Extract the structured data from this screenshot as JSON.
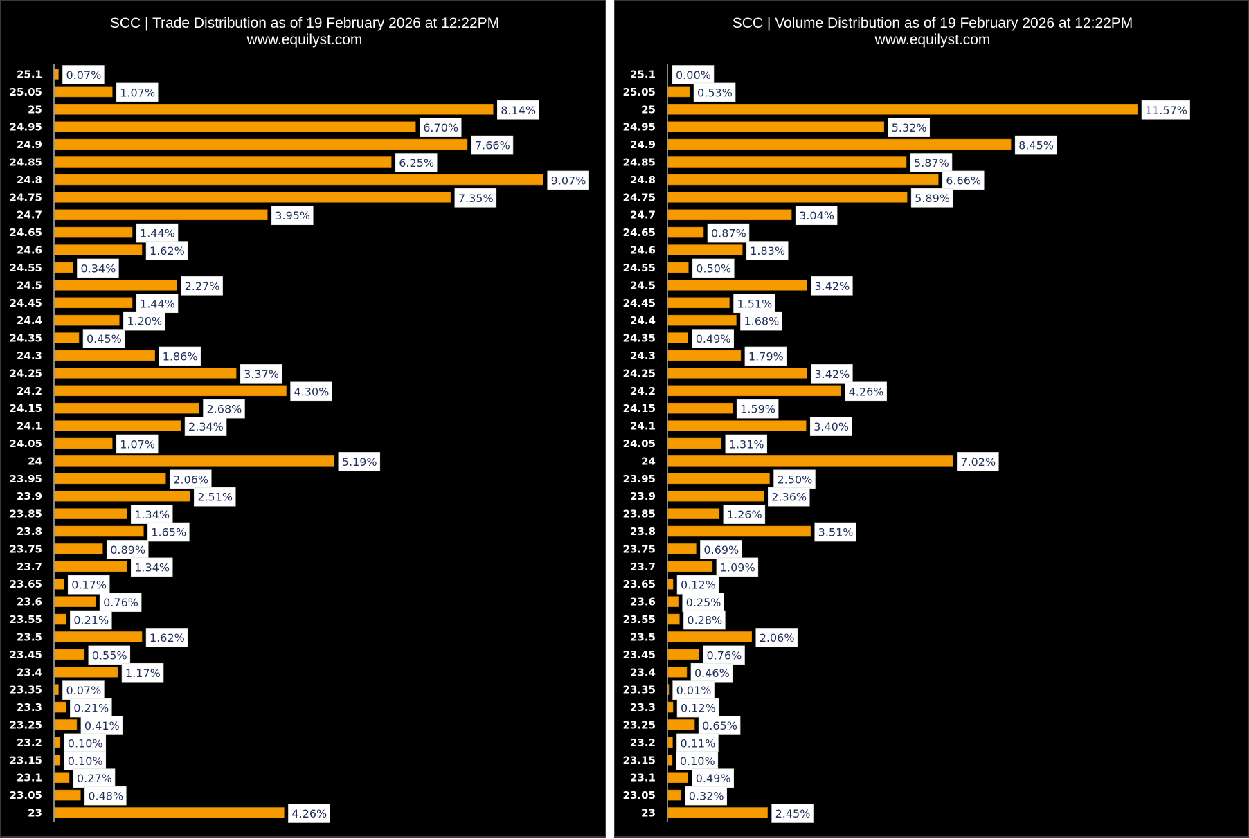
{
  "colors": {
    "background": "#000000",
    "bar": "#f59b00",
    "label_box": "#ffffff",
    "label_text": "#1f2f5c",
    "text": "#ffffff",
    "separator": "#ffffff"
  },
  "chart_data": [
    {
      "type": "bar",
      "orientation": "horizontal",
      "title": "SCC | Trade Distribution as of 19 February 2026 at 12:22PM",
      "subtitle": "www.equilyst.com",
      "xlabel": "",
      "ylabel": "",
      "grid": false,
      "legend": "none",
      "value_suffix": "%",
      "xlim": [
        0,
        10
      ],
      "categories": [
        "25.1",
        "25.05",
        "25",
        "24.95",
        "24.9",
        "24.85",
        "24.8",
        "24.75",
        "24.7",
        "24.65",
        "24.6",
        "24.55",
        "24.5",
        "24.45",
        "24.4",
        "24.35",
        "24.3",
        "24.25",
        "24.2",
        "24.15",
        "24.1",
        "24.05",
        "24",
        "23.95",
        "23.9",
        "23.85",
        "23.8",
        "23.75",
        "23.7",
        "23.65",
        "23.6",
        "23.55",
        "23.5",
        "23.45",
        "23.4",
        "23.35",
        "23.3",
        "23.25",
        "23.2",
        "23.15",
        "23.1",
        "23.05",
        "23"
      ],
      "values": [
        0.07,
        1.07,
        8.14,
        6.7,
        7.66,
        6.25,
        9.07,
        7.35,
        3.95,
        1.44,
        1.62,
        0.34,
        2.27,
        1.44,
        1.2,
        0.45,
        1.86,
        3.37,
        4.3,
        2.68,
        2.34,
        1.07,
        5.19,
        2.06,
        2.51,
        1.34,
        1.65,
        0.89,
        1.34,
        0.17,
        0.76,
        0.21,
        1.62,
        0.55,
        1.17,
        0.07,
        0.21,
        0.41,
        0.1,
        0.1,
        0.27,
        0.48,
        4.26
      ],
      "data_labels": [
        "0.07%",
        "1.07%",
        "8.14%",
        "6.70%",
        "7.66%",
        "6.25%",
        "9.07%",
        "7.35%",
        "3.95%",
        "1.44%",
        "1.62%",
        "0.34%",
        "2.27%",
        "1.44%",
        "1.20%",
        "0.45%",
        "1.86%",
        "3.37%",
        "4.30%",
        "2.68%",
        "2.34%",
        "1.07%",
        "5.19%",
        "2.06%",
        "2.51%",
        "1.34%",
        "1.65%",
        "0.89%",
        "1.34%",
        "0.17%",
        "0.76%",
        "0.21%",
        "1.62%",
        "0.55%",
        "1.17%",
        "0.07%",
        "0.21%",
        "0.41%",
        "0.10%",
        "0.10%",
        "0.27%",
        "0.48%",
        "4.26%"
      ]
    },
    {
      "type": "bar",
      "orientation": "horizontal",
      "title": "SCC | Volume Distribution as of 19 February 2026 at 12:22PM",
      "subtitle": "www.equilyst.com",
      "xlabel": "",
      "ylabel": "",
      "grid": false,
      "legend": "none",
      "value_suffix": "%",
      "xlim": [
        0,
        13
      ],
      "categories": [
        "25.1",
        "25.05",
        "25",
        "24.95",
        "24.9",
        "24.85",
        "24.8",
        "24.75",
        "24.7",
        "24.65",
        "24.6",
        "24.55",
        "24.5",
        "24.45",
        "24.4",
        "24.35",
        "24.3",
        "24.25",
        "24.2",
        "24.15",
        "24.1",
        "24.05",
        "24",
        "23.95",
        "23.9",
        "23.85",
        "23.8",
        "23.75",
        "23.7",
        "23.65",
        "23.6",
        "23.55",
        "23.5",
        "23.45",
        "23.4",
        "23.35",
        "23.3",
        "23.25",
        "23.2",
        "23.15",
        "23.1",
        "23.05",
        "23"
      ],
      "values": [
        0.0,
        0.53,
        11.57,
        5.32,
        8.45,
        5.87,
        6.66,
        5.89,
        3.04,
        0.87,
        1.83,
        0.5,
        3.42,
        1.51,
        1.68,
        0.49,
        1.79,
        3.42,
        4.26,
        1.59,
        3.4,
        1.31,
        7.02,
        2.5,
        2.36,
        1.26,
        3.51,
        0.69,
        1.09,
        0.12,
        0.25,
        0.28,
        2.06,
        0.76,
        0.46,
        0.01,
        0.12,
        0.65,
        0.11,
        0.1,
        0.49,
        0.32,
        2.45
      ],
      "data_labels": [
        "0.00%",
        "0.53%",
        "11.57%",
        "5.32%",
        "8.45%",
        "5.87%",
        "6.66%",
        "5.89%",
        "3.04%",
        "0.87%",
        "1.83%",
        "0.50%",
        "3.42%",
        "1.51%",
        "1.68%",
        "0.49%",
        "1.79%",
        "3.42%",
        "4.26%",
        "1.59%",
        "3.40%",
        "1.31%",
        "7.02%",
        "2.50%",
        "2.36%",
        "1.26%",
        "3.51%",
        "0.69%",
        "1.09%",
        "0.12%",
        "0.25%",
        "0.28%",
        "2.06%",
        "0.76%",
        "0.46%",
        "0.01%",
        "0.12%",
        "0.65%",
        "0.11%",
        "0.10%",
        "0.49%",
        "0.32%",
        "2.45%"
      ]
    }
  ]
}
